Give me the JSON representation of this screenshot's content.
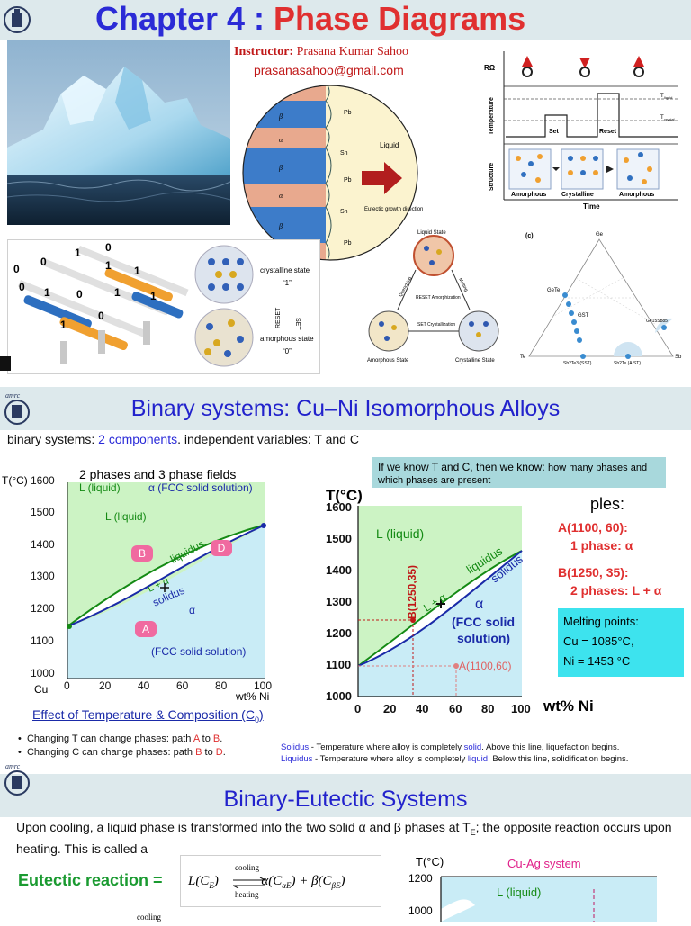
{
  "slide1": {
    "title_prefix": "Chapter 4 : ",
    "title_main": "Phase Diagrams",
    "instructor_label": "Instructor:",
    "instructor_name": " Prasana Kumar Sahoo",
    "email": "prasanasahoo@gmail.com",
    "pcm": {
      "axis_r": "RΩ",
      "axis_temp": "Temperature",
      "axis_structure": "Structure",
      "axis_time": "Time",
      "t_liquid": "T",
      "t_liquid_sub": "liquid",
      "t_crystal": "T",
      "t_crystal_sub": "crystal",
      "set": "Set",
      "reset": "Reset",
      "amorphous1": "Amorphous",
      "crystalline": "Crystalline",
      "amorphous2": "Amorphous"
    },
    "eutectic_circle": {
      "liquid": "Liquid",
      "eutectic_growth": "Eutectic growth direction",
      "pb": "Pb",
      "sn": "Sn",
      "beta": "β",
      "alpha": "α"
    },
    "memory": {
      "crystalline_state": "crystalline state",
      "one": "“1”",
      "reset": "RESET",
      "set": "SET",
      "amorphous_state": "amorphous state",
      "zero": "“0”",
      "bits": [
        "0",
        "0",
        "1",
        "0",
        "1",
        "1",
        "0",
        "1",
        "0",
        "1",
        "1",
        "0",
        "1"
      ]
    },
    "cycle": {
      "liquid_state": "Liquid State",
      "reset_amorph": "RESET Amorphization",
      "set_cryst": "SET Crystallization",
      "amorphous_state": "Amorphous State",
      "crystalline_state": "Crystalline State",
      "quenching": "Quenching",
      "melting": "Melting"
    },
    "ternary": {
      "label_c": "(c)",
      "ge": "Ge",
      "gete": "GeTe",
      "gst": "GST",
      "te": "Te",
      "sb": "Sb",
      "ge15sb85": "Ge15Sb85",
      "sst": "Sb2Te3 (SST)",
      "aist": "Sb2Te (AIST)"
    }
  },
  "slide2": {
    "title": "Binary systems: Cu–Ni Isomorphous Alloys",
    "intro_prefix": "binary systems:  ",
    "intro_highlight": "2 components",
    "intro_suffix": ". independent variables:  T and C",
    "info_box_lead": "If we know T and C, then we know: ",
    "info_box_rest": "how many phases and which phases are present",
    "examples_partial": "ples:",
    "exA_title": "A(1100, 60):",
    "exA_phase": "1 phase:  α",
    "exB_title": "B(1250, 35):",
    "exB_phase": "2 phases: L + α",
    "melting_title": "Melting points:",
    "melting_cu": "Cu = 1085°C,",
    "melting_ni": "Ni = 1453 °C",
    "left_chart": {
      "ylabel": "T(°C)",
      "header_note": "2 phases and 3 phase fields",
      "yticks": [
        "1600",
        "1500",
        "1400",
        "1300",
        "1200",
        "1100",
        "1000"
      ],
      "xticks": [
        "0",
        "20",
        "40",
        "60",
        "80",
        "100"
      ],
      "cu": "Cu",
      "xunit": "wt% Ni",
      "l_liquid_top": "L (liquid)",
      "alpha_fcc_top": "α  (FCC solid solution)",
      "l_liquid": "L (liquid)",
      "liquidus": "liquidus",
      "solidus": "solidus",
      "l_plus_alpha": "L + α",
      "alpha": "α",
      "fcc": "(FCC solid solution)",
      "pt_a": "A",
      "pt_b": "B",
      "pt_d": "D"
    },
    "right_chart": {
      "ylabel": "T(°C)",
      "yticks": [
        "1600",
        "1500",
        "1400",
        "1300",
        "1200",
        "1100",
        "1000"
      ],
      "xticks": [
        "0",
        "20",
        "40",
        "60",
        "80",
        "100"
      ],
      "xunit": "wt% Ni",
      "l_liquid": "L (liquid)",
      "liquidus": "liquidus",
      "solidus": "solidus",
      "l_alpha": "L + α",
      "alpha": "α",
      "fcc1": "(FCC solid",
      "fcc2": "solution)",
      "b_label": "B(1250,35)",
      "a_label": "A(1100,60)"
    },
    "effect_prefix": "Effect of Temperature & Composition (C",
    "effect_sub": "0",
    "effect_suffix": ")",
    "bullet1_pre": "Changing T can change phases:  path ",
    "bullet1_a": "A",
    "bullet1_to": " to ",
    "bullet1_b": "B",
    "bullet1_end": ".",
    "bullet2_pre": "Changing C can change phases:  path ",
    "bullet2_b": "B",
    "bullet2_to": " to ",
    "bullet2_d": "D",
    "bullet2_end": ".",
    "solidus_term": "Solidus",
    "solidus_def_a": " - Temperature where alloy is completely ",
    "solidus_word": "solid",
    "solidus_def_b": ". Above  this line, liquefaction begins.",
    "liquidus_term": "Liquidus",
    "liquidus_def_a": " - Temperature where alloy is completely ",
    "liquidus_word": "liquid",
    "liquidus_def_b": ". Below this line, solidification begins."
  },
  "slide3": {
    "title": "Binary-Eutectic Systems",
    "body": "Upon cooling, a liquid phase is transformed into the two solid α and β phases at T",
    "body_sub": "E",
    "body_rest": "; the opposite reaction occurs upon heating. This is called a",
    "eutectic_label": "Eutectic reaction =",
    "eq_cooling": "cooling",
    "eq_heating": "heating",
    "eq_left": "L(C",
    "eq_sub_e": "E",
    "eq_mid": ")",
    "eq_right": "α(C",
    "eq_sub_ae": "αE",
    "eq_plus": ") + β(C",
    "eq_sub_be": "βE",
    "eq_end": ")",
    "cooling_bottom": "cooling",
    "chart_ylabel": "T(°C)",
    "chart_title": "Cu-Ag system",
    "chart_y1200": "1200",
    "chart_y1000": "1000",
    "chart_liquid": "L (liquid)"
  }
}
